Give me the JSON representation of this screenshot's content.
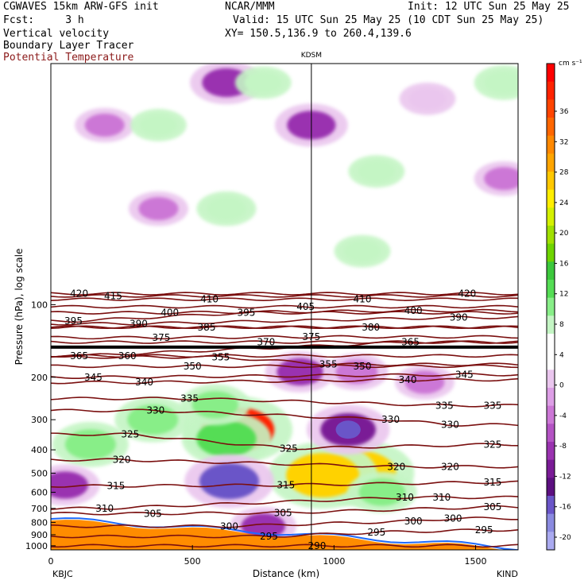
{
  "header": {
    "line1_left": "CGWAVES 15km ARW-GFS init",
    "line1_mid": "NCAR/MMM",
    "line1_right": "Init: 12 UTC Sun 25 May 25",
    "line2_left": "Fcst:     3 h",
    "line2_right": "Valid: 15 UTC Sun 25 May 25 (10 CDT Sun 25 May 25)",
    "line3_left": "Vertical velocity",
    "line3_right": "XY= 150.5,136.9 to 260.4,139.6",
    "line4_left": "Boundary Layer Tracer",
    "line5_left": "Potential Temperature"
  },
  "station_marker": "KDSM",
  "x_endpoints": {
    "left": "KBJC",
    "right": "KIND"
  },
  "colorbar": {
    "unit": "cm s⁻¹",
    "ticks": [
      "36",
      "32",
      "28",
      "24",
      "20",
      "16",
      "12",
      "8",
      "4",
      "0",
      "-4",
      "-8",
      "-12",
      "-16",
      "-20"
    ],
    "colors": [
      "#ff0000",
      "#ff2200",
      "#ff4400",
      "#ff6600",
      "#ff8800",
      "#ffa500",
      "#ffc800",
      "#ffee00",
      "#d4f000",
      "#a0e000",
      "#6ed400",
      "#3cc83c",
      "#55dd55",
      "#88ee88",
      "#c4f5c4",
      "#ffffff",
      "#ffffff",
      "#eac6ee",
      "#dd9ee6",
      "#cc77d6",
      "#b453c4",
      "#9a33b0",
      "#7a1b96",
      "#5c0f80",
      "#6a55c8",
      "#8a8ae0",
      "#aaaaf0"
    ]
  },
  "theta_labels": [
    {
      "text": "420",
      "d": 100,
      "p": 90
    },
    {
      "text": "415",
      "d": 220,
      "p": 92
    },
    {
      "text": "410",
      "d": 560,
      "p": 95
    },
    {
      "text": "410",
      "d": 1100,
      "p": 95
    },
    {
      "text": "420",
      "d": 1470,
      "p": 90
    },
    {
      "text": "395",
      "d": 80,
      "p": 117
    },
    {
      "text": "400",
      "d": 420,
      "p": 108
    },
    {
      "text": "395",
      "d": 690,
      "p": 108
    },
    {
      "text": "405",
      "d": 900,
      "p": 102
    },
    {
      "text": "400",
      "d": 1280,
      "p": 106
    },
    {
      "text": "390",
      "d": 1440,
      "p": 113
    },
    {
      "text": "390",
      "d": 310,
      "p": 120
    },
    {
      "text": "385",
      "d": 550,
      "p": 124
    },
    {
      "text": "380",
      "d": 1130,
      "p": 124
    },
    {
      "text": "375",
      "d": 390,
      "p": 137
    },
    {
      "text": "370",
      "d": 760,
      "p": 143
    },
    {
      "text": "375",
      "d": 920,
      "p": 136
    },
    {
      "text": "365",
      "d": 1270,
      "p": 143
    },
    {
      "text": "365",
      "d": 100,
      "p": 163
    },
    {
      "text": "360",
      "d": 270,
      "p": 163
    },
    {
      "text": "355",
      "d": 600,
      "p": 165
    },
    {
      "text": "350",
      "d": 500,
      "p": 180
    },
    {
      "text": "355",
      "d": 980,
      "p": 177
    },
    {
      "text": "350",
      "d": 1100,
      "p": 180
    },
    {
      "text": "345",
      "d": 1460,
      "p": 195
    },
    {
      "text": "345",
      "d": 150,
      "p": 200
    },
    {
      "text": "340",
      "d": 330,
      "p": 210
    },
    {
      "text": "340",
      "d": 1260,
      "p": 205
    },
    {
      "text": "335",
      "d": 490,
      "p": 245
    },
    {
      "text": "335",
      "d": 1390,
      "p": 262
    },
    {
      "text": "335",
      "d": 1560,
      "p": 262
    },
    {
      "text": "330",
      "d": 370,
      "p": 275
    },
    {
      "text": "330",
      "d": 1200,
      "p": 300
    },
    {
      "text": "330",
      "d": 1410,
      "p": 315
    },
    {
      "text": "325",
      "d": 280,
      "p": 345
    },
    {
      "text": "325",
      "d": 840,
      "p": 395
    },
    {
      "text": "325",
      "d": 1560,
      "p": 380
    },
    {
      "text": "320",
      "d": 250,
      "p": 440
    },
    {
      "text": "320",
      "d": 1220,
      "p": 470
    },
    {
      "text": "320",
      "d": 1410,
      "p": 470
    },
    {
      "text": "315",
      "d": 230,
      "p": 565
    },
    {
      "text": "315",
      "d": 830,
      "p": 560
    },
    {
      "text": "315",
      "d": 1560,
      "p": 545
    },
    {
      "text": "310",
      "d": 190,
      "p": 700
    },
    {
      "text": "310",
      "d": 1250,
      "p": 630
    },
    {
      "text": "310",
      "d": 1380,
      "p": 630
    },
    {
      "text": "305",
      "d": 1560,
      "p": 690
    },
    {
      "text": "305",
      "d": 360,
      "p": 735
    },
    {
      "text": "305",
      "d": 820,
      "p": 730
    },
    {
      "text": "300",
      "d": 1280,
      "p": 790
    },
    {
      "text": "300",
      "d": 1420,
      "p": 770
    },
    {
      "text": "300",
      "d": 630,
      "p": 830
    },
    {
      "text": "295",
      "d": 770,
      "p": 915
    },
    {
      "text": "295",
      "d": 1150,
      "p": 880
    },
    {
      "text": "295",
      "d": 1530,
      "p": 860
    },
    {
      "text": "290",
      "d": 940,
      "p": 1000
    }
  ],
  "chart_data": {
    "type": "heatmap",
    "title": "Vertical velocity",
    "xlabel": "Distance (km)",
    "ylabel": "Pressure (hPa), log scale",
    "xlim": [
      0,
      1650
    ],
    "ylim": [
      1040,
      10
    ],
    "y_scale": "log",
    "x_ticks": [
      "0",
      "500",
      "1000",
      "1500"
    ],
    "x_tick_values": [
      0,
      500,
      1000,
      1500
    ],
    "y_ticks": [
      "100",
      "200",
      "300",
      "400",
      "500",
      "600",
      "700",
      "800",
      "900",
      "1000"
    ],
    "y_tick_values": [
      100,
      200,
      300,
      400,
      500,
      600,
      700,
      800,
      900,
      1000
    ],
    "station_distance_km": 920,
    "vertical_velocity_blobs_cm_s": [
      {
        "d": 920,
        "p": 18,
        "w": -9
      },
      {
        "d": 620,
        "p": 12,
        "w": -9
      },
      {
        "d": 190,
        "p": 18,
        "w": -5
      },
      {
        "d": 1330,
        "p": 14,
        "w": -4
      },
      {
        "d": 1600,
        "p": 30,
        "w": -5
      },
      {
        "d": 380,
        "p": 40,
        "w": -5
      },
      {
        "d": 1150,
        "p": 28,
        "w": 4
      },
      {
        "d": 620,
        "p": 40,
        "w": 5
      },
      {
        "d": 380,
        "p": 18,
        "w": 4
      },
      {
        "d": 750,
        "p": 12,
        "w": 4
      },
      {
        "d": 1600,
        "p": 12,
        "w": 5
      },
      {
        "d": 1100,
        "p": 60,
        "w": 4
      },
      {
        "d": 880,
        "p": 190,
        "w": -8
      },
      {
        "d": 1080,
        "p": 190,
        "w": -6
      },
      {
        "d": 1320,
        "p": 210,
        "w": -5
      },
      {
        "d": 660,
        "p": 330,
        "w": 36
      },
      {
        "d": 620,
        "p": 360,
        "w": 14
      },
      {
        "d": 1090,
        "p": 500,
        "w": 24
      },
      {
        "d": 960,
        "p": 510,
        "w": 20
      },
      {
        "d": 1050,
        "p": 330,
        "w": -12
      },
      {
        "d": 630,
        "p": 540,
        "w": -14
      },
      {
        "d": 140,
        "p": 380,
        "w": 10
      },
      {
        "d": 360,
        "p": 300,
        "w": 10
      },
      {
        "d": 580,
        "p": 260,
        "w": 8
      },
      {
        "d": 1170,
        "p": 600,
        "w": 8
      },
      {
        "d": 50,
        "p": 560,
        "w": -8
      },
      {
        "d": 750,
        "p": 830,
        "w": -7
      }
    ]
  }
}
